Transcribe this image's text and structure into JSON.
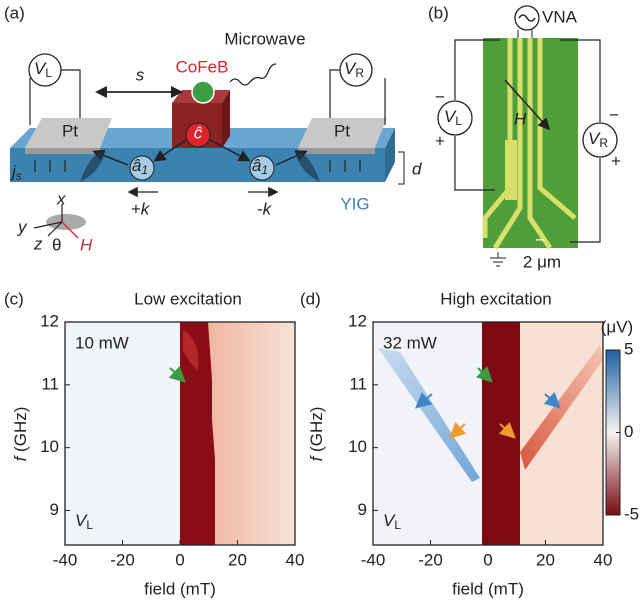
{
  "panel_a": {
    "label": "(a)",
    "microwave": "Microwave",
    "cofeb": "CoFeB",
    "pt_left": "Pt",
    "pt_right": "Pt",
    "s": "s",
    "v_left": {
      "main": "V",
      "sub": "L"
    },
    "v_right": {
      "main": "V",
      "sub": "R"
    },
    "j": {
      "main": "j",
      "sub": "s"
    },
    "c_hat": "ĉ",
    "a_left": {
      "main": "â",
      "sub": "1"
    },
    "a_right": {
      "main": "â",
      "sub": "1"
    },
    "plus_k": "+k",
    "minus_k": "-k",
    "d": "d",
    "yig": "YIG",
    "x": "x",
    "y": "y",
    "z": "z",
    "theta": "θ",
    "h": "H"
  },
  "panel_b": {
    "label": "(b)",
    "vna": "VNA",
    "h": "H",
    "v_left": {
      "main": "V",
      "sub": "L"
    },
    "v_right": {
      "main": "V",
      "sub": "R"
    },
    "left_minus": "−",
    "left_plus": "+",
    "right_minus": "−",
    "right_plus": "+",
    "scale": "2 μm",
    "bottom_minus": "−"
  },
  "panel_c": {
    "label": "(c)",
    "title": "Low excitation",
    "power": "10 mW",
    "v": {
      "main": "V",
      "sub": "L"
    },
    "xlabel": "field (mT)",
    "ylabel": {
      "symbol": "f",
      "unit": "(GHz)"
    },
    "xlim": [
      -40,
      40
    ],
    "ylim": [
      8.45,
      12
    ],
    "xticks": [
      -40,
      -20,
      0,
      20,
      40
    ],
    "yticks": [
      9,
      10,
      11,
      12
    ]
  },
  "panel_d": {
    "label": "(d)",
    "title": "High excitation",
    "power": "32 mW",
    "v": {
      "main": "V",
      "sub": "L"
    },
    "xlabel": "field (mT)",
    "ylabel": {
      "symbol": "f",
      "unit": "(GHz)"
    },
    "xlim": [
      -40,
      40
    ],
    "ylim": [
      8.45,
      12
    ],
    "xticks": [
      -40,
      -20,
      0,
      20,
      40
    ],
    "yticks": [
      9,
      10,
      11,
      12
    ],
    "colorbar": {
      "label": "(μV)",
      "lim": [
        -5,
        5
      ],
      "ticks": [
        5,
        0,
        -5
      ]
    }
  }
}
